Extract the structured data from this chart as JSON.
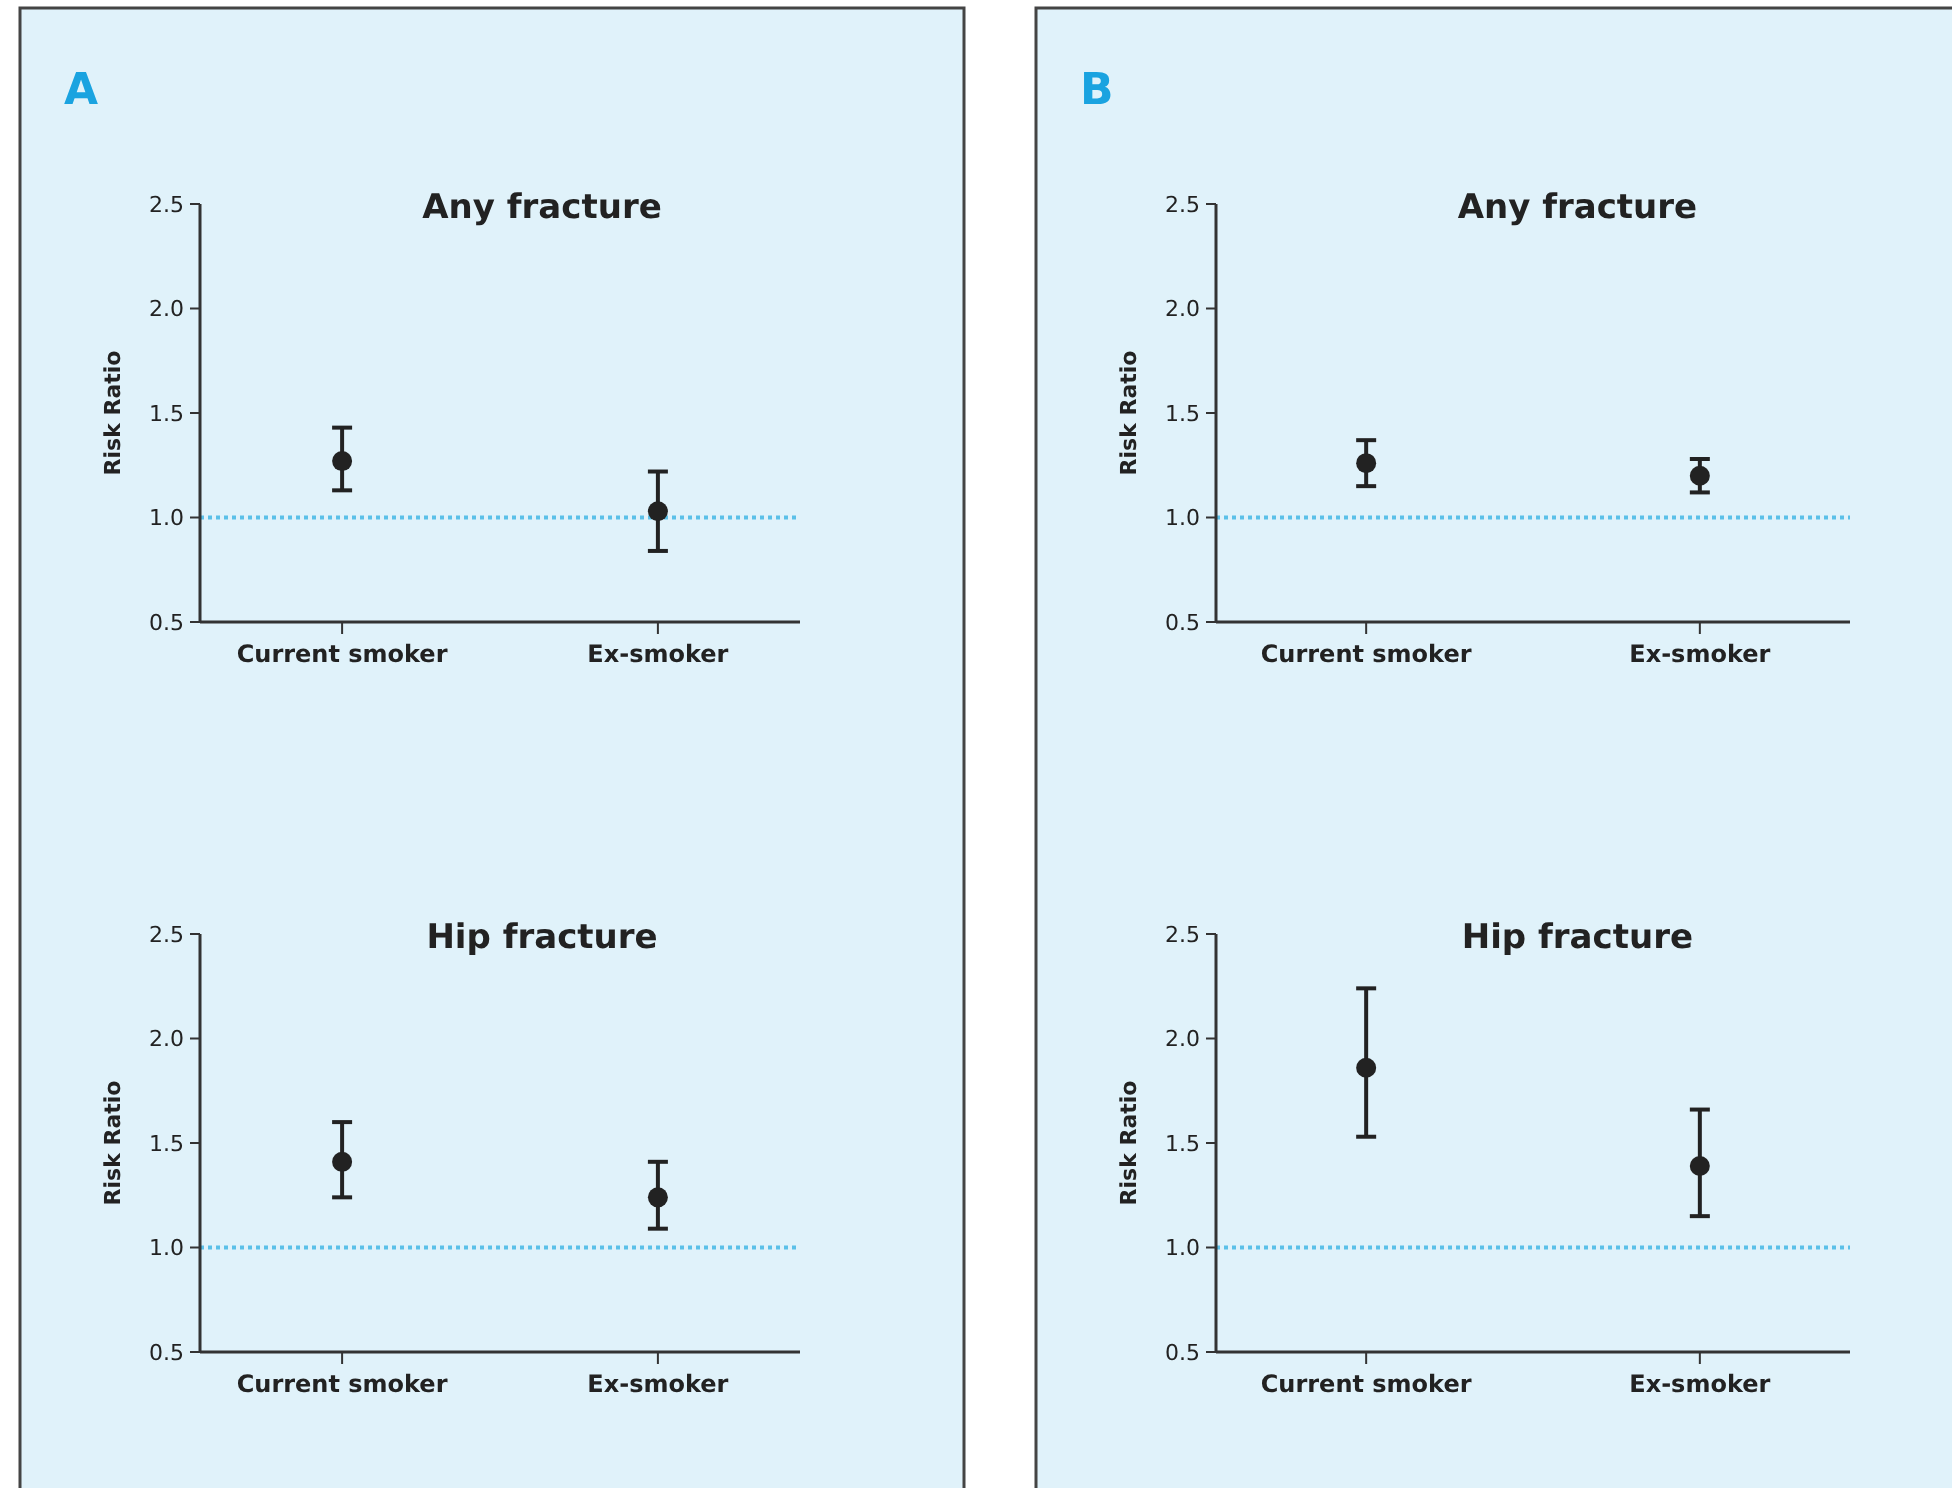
{
  "chart_data": [
    {
      "type": "scatter",
      "title": "Any fracture",
      "ylabel": "Risk Ratio",
      "annotations": [
        "A"
      ],
      "categories": [
        "Current smoker",
        "Ex-smoker"
      ],
      "values": [
        1.27,
        1.03
      ],
      "errors": [
        [
          1.13,
          1.43
        ],
        [
          0.84,
          1.22
        ]
      ],
      "color": "#222222",
      "marker": "circle",
      "ylim": [
        0.5,
        2.5
      ],
      "yticks": [
        {
          "value": 0.5,
          "label": "0.5"
        },
        {
          "value": 1,
          "label": "1.0"
        },
        {
          "value": 1.5,
          "label": "1.5"
        },
        {
          "value": 2,
          "label": "2.0"
        },
        {
          "value": 2.5,
          "label": "2.5"
        }
      ],
      "ref_lines": [
        {
          "axis": "y",
          "value": 1,
          "color": "#5bc0e8",
          "line_style": "dotted"
        }
      ],
      "grid": false
    },
    {
      "type": "scatter",
      "title": "Any fracture",
      "ylabel": "Risk Ratio",
      "annotations": [
        "B"
      ],
      "categories": [
        "Current smoker",
        "Ex-smoker"
      ],
      "values": [
        1.26,
        1.2
      ],
      "errors": [
        [
          1.15,
          1.37
        ],
        [
          1.12,
          1.28
        ]
      ],
      "color": "#222222",
      "marker": "circle",
      "ylim": [
        0.5,
        2.5
      ],
      "yticks": [
        {
          "value": 0.5,
          "label": "0.5"
        },
        {
          "value": 1,
          "label": "1.0"
        },
        {
          "value": 1.5,
          "label": "1.5"
        },
        {
          "value": 2,
          "label": "2.0"
        },
        {
          "value": 2.5,
          "label": "2.5"
        }
      ],
      "ref_lines": [
        {
          "axis": "y",
          "value": 1,
          "color": "#5bc0e8",
          "line_style": "dotted"
        }
      ],
      "grid": false
    },
    {
      "type": "scatter",
      "title": "Hip fracture",
      "ylabel": "Risk Ratio",
      "categories": [
        "Current smoker",
        "Ex-smoker"
      ],
      "values": [
        1.41,
        1.24
      ],
      "errors": [
        [
          1.24,
          1.6
        ],
        [
          1.09,
          1.41
        ]
      ],
      "color": "#222222",
      "marker": "circle",
      "ylim": [
        0.5,
        2.5
      ],
      "yticks": [
        {
          "value": 0.5,
          "label": "0.5"
        },
        {
          "value": 1,
          "label": "1.0"
        },
        {
          "value": 1.5,
          "label": "1.5"
        },
        {
          "value": 2,
          "label": "2.0"
        },
        {
          "value": 2.5,
          "label": "2.5"
        }
      ],
      "ref_lines": [
        {
          "axis": "y",
          "value": 1,
          "color": "#5bc0e8",
          "line_style": "dotted"
        }
      ],
      "grid": false
    },
    {
      "type": "scatter",
      "title": "Hip fracture",
      "ylabel": "Risk Ratio",
      "categories": [
        "Current smoker",
        "Ex-smoker"
      ],
      "values": [
        1.86,
        1.39
      ],
      "errors": [
        [
          1.53,
          2.24
        ],
        [
          1.15,
          1.66
        ]
      ],
      "color": "#222222",
      "marker": "circle",
      "ylim": [
        0.5,
        2.5
      ],
      "yticks": [
        {
          "value": 0.5,
          "label": "0.5"
        },
        {
          "value": 1,
          "label": "1.0"
        },
        {
          "value": 1.5,
          "label": "1.5"
        },
        {
          "value": 2,
          "label": "2.0"
        },
        {
          "value": 2.5,
          "label": "2.5"
        }
      ],
      "ref_lines": [
        {
          "axis": "y",
          "value": 1,
          "color": "#5bc0e8",
          "line_style": "dotted"
        }
      ],
      "grid": false
    }
  ]
}
